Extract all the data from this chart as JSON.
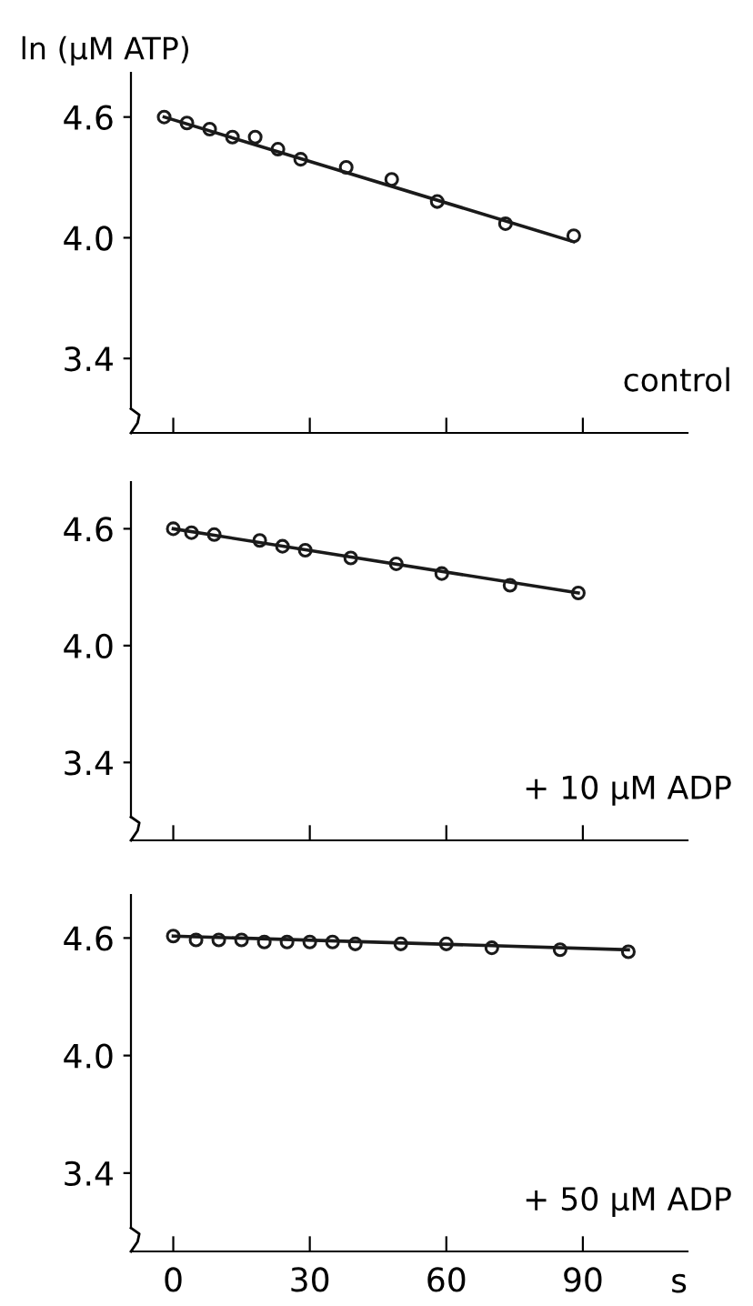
{
  "chart_data": [
    {
      "type": "line",
      "ylabel": "ln (μM ATP)",
      "annotations": [
        "control"
      ],
      "xlim": [
        -9.3,
        113
      ],
      "ylim": [
        3.03,
        4.82
      ],
      "xticks": [
        {
          "value": 0,
          "label": null
        },
        {
          "value": 30,
          "label": null
        },
        {
          "value": 60,
          "label": null
        },
        {
          "value": 90,
          "label": null
        }
      ],
      "yticks": [
        {
          "value": 3.4,
          "label": "3.4"
        },
        {
          "value": 4.0,
          "label": "4.0"
        },
        {
          "value": 4.6,
          "label": "4.6"
        }
      ],
      "tick_labels": "y",
      "grid": false,
      "legend": false,
      "series": [
        {
          "type": "scatter",
          "marker": "circle",
          "color": "#1a1a1a",
          "x": [
            -2,
            3,
            8,
            13,
            18,
            23,
            28,
            38,
            48,
            58,
            73,
            88
          ],
          "values": [
            4.6,
            4.57,
            4.54,
            4.5,
            4.5,
            4.44,
            4.39,
            4.35,
            4.29,
            4.18,
            4.07,
            4.01
          ]
        },
        {
          "marker": "none",
          "color": "#1a1a1a",
          "x": [
            -2,
            88
          ],
          "values": [
            4.6,
            3.98
          ]
        }
      ]
    },
    {
      "type": "line",
      "annotations": [
        "+ 10 μM ADP"
      ],
      "xlim": [
        -9.3,
        113
      ],
      "ylim": [
        3.0,
        4.84
      ],
      "xticks": [
        {
          "value": 0,
          "label": null
        },
        {
          "value": 30,
          "label": null
        },
        {
          "value": 60,
          "label": null
        },
        {
          "value": 90,
          "label": null
        }
      ],
      "yticks": [
        {
          "value": 3.4,
          "label": "3.4"
        },
        {
          "value": 4.0,
          "label": "4.0"
        },
        {
          "value": 4.6,
          "label": "4.6"
        }
      ],
      "tick_labels": "y",
      "grid": false,
      "legend": false,
      "series": [
        {
          "type": "scatter",
          "marker": "circle",
          "color": "#1a1a1a",
          "x": [
            0,
            4,
            9,
            19,
            24,
            29,
            39,
            49,
            59,
            74,
            89
          ],
          "values": [
            4.6,
            4.58,
            4.57,
            4.54,
            4.51,
            4.49,
            4.45,
            4.42,
            4.37,
            4.31,
            4.27
          ]
        },
        {
          "marker": "none",
          "color": "#1a1a1a",
          "x": [
            0,
            89
          ],
          "values": [
            4.6,
            4.27
          ]
        }
      ]
    },
    {
      "type": "line",
      "xlabel": "s",
      "annotations": [
        "+ 50 μM ADP"
      ],
      "xlim": [
        -9.3,
        113
      ],
      "ylim": [
        3.0,
        4.82
      ],
      "xticks": [
        0,
        30,
        60,
        90
      ],
      "yticks": [
        {
          "value": 3.4,
          "label": "3.4"
        },
        {
          "value": 4.0,
          "label": "4.0"
        },
        {
          "value": 4.6,
          "label": "4.6"
        }
      ],
      "grid": false,
      "legend": false,
      "series": [
        {
          "type": "scatter",
          "marker": "circle",
          "color": "#1a1a1a",
          "x": [
            0,
            5,
            10,
            15,
            20,
            25,
            30,
            35,
            40,
            50,
            60,
            70,
            85,
            100
          ],
          "values": [
            4.61,
            4.59,
            4.59,
            4.59,
            4.58,
            4.58,
            4.58,
            4.58,
            4.57,
            4.57,
            4.57,
            4.55,
            4.54,
            4.53
          ]
        },
        {
          "marker": "none",
          "color": "#1a1a1a",
          "x": [
            0,
            100
          ],
          "values": [
            4.61,
            4.54
          ]
        }
      ]
    }
  ]
}
